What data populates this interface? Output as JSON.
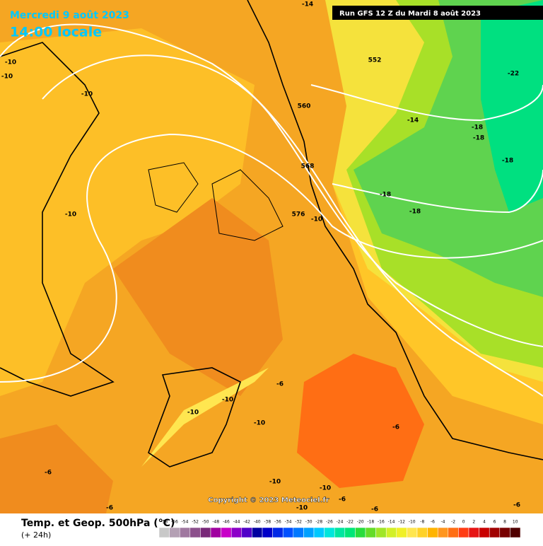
{
  "header": {
    "date": "Mercredi 9 août 2023",
    "time": "14:00 locale",
    "run": "Run GFS 12 Z du Mardi 8 août 2023"
  },
  "map": {
    "contours": [
      552,
      560,
      568,
      576
    ],
    "temps": [
      -14,
      -10,
      -22,
      -14,
      -18,
      -18,
      -18,
      -18,
      -18,
      -10,
      -10,
      -10,
      -10,
      -10,
      -6,
      -10,
      -10,
      -10,
      -6,
      -6,
      -10,
      -6,
      -10,
      -6,
      -6,
      -6
    ]
  },
  "footer": {
    "title": "Temp. et Geop. 500hPa (°C)",
    "lead": "(+ 24h)",
    "copyright": "Copyright © 2023 Meteociel.fr"
  },
  "scale": {
    "labels": [
      -58,
      -56,
      -54,
      -52,
      -50,
      -48,
      -46,
      -44,
      -42,
      -40,
      -38,
      -36,
      -34,
      -32,
      -30,
      -28,
      -26,
      -24,
      -22,
      -20,
      -18,
      -16,
      -14,
      -12,
      -10,
      -8,
      -6,
      -4,
      -2,
      0,
      2,
      4,
      6,
      8,
      10
    ],
    "colors": [
      "#c8c8c8",
      "#b4a0b4",
      "#a078a0",
      "#8c508c",
      "#782878",
      "#a000a0",
      "#c800c8",
      "#8c00c8",
      "#5000c8",
      "#0000a0",
      "#0000c8",
      "#0028e6",
      "#0050ff",
      "#0078ff",
      "#00a0ff",
      "#00c8ff",
      "#00e6dc",
      "#00e6a0",
      "#00e678",
      "#28dc3c",
      "#64dc28",
      "#a0e628",
      "#d2f028",
      "#f0f028",
      "#ffe650",
      "#ffd228",
      "#ffb400",
      "#ff961e",
      "#ff6e14",
      "#ff3c14",
      "#e61414",
      "#c80000",
      "#a00000",
      "#780000",
      "#500000"
    ]
  }
}
